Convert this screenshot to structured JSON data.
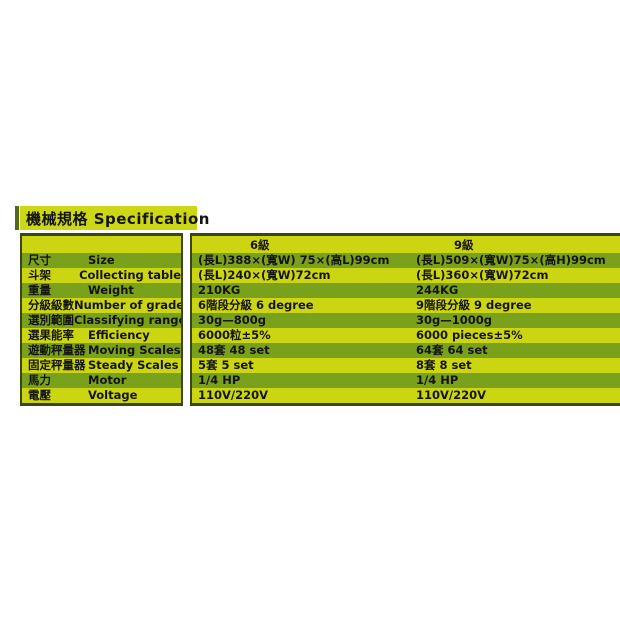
{
  "title": {
    "text": "機械規格  Specification"
  },
  "table": {
    "col_headers": [
      "6級",
      "9級"
    ],
    "rows": [
      {
        "cn": "尺寸",
        "en": "Size",
        "c6": "(長L)388×(寬W) 75×(高L)99cm",
        "c9": "(長L)509×(寬W)75×(高H)99cm"
      },
      {
        "cn": "斗架",
        "en": "Collecting table",
        "c6": "(長L)240×(寬W)72cm",
        "c9": "(長L)360×(寬W)72cm"
      },
      {
        "cn": "重量",
        "en": "Weight",
        "c6": "210KG",
        "c9": "244KG"
      },
      {
        "cn": "分級級數",
        "en": "Number of grades",
        "c6": "6階段分級 6 degree",
        "c9": "9階段分級 9 degree"
      },
      {
        "cn": "選別範圍",
        "en": "Classifying range",
        "c6": "30g—800g",
        "c9": "30g—1000g"
      },
      {
        "cn": "選果能率",
        "en": "Efficiency",
        "c6": "6000粒±5%",
        "c9": "6000 pieces±5%"
      },
      {
        "cn": "遊動秤量器",
        "en": "Moving Scales",
        "c6": "48套 48 set",
        "c9": "64套 64 set"
      },
      {
        "cn": "固定秤量器",
        "en": "Steady Scales",
        "c6": "5套 5 set",
        "c9": "8套 8 set"
      },
      {
        "cn": "馬力",
        "en": "Motor",
        "c6": "1/4 HP",
        "c9": "1/4 HP"
      },
      {
        "cn": "電壓",
        "en": "Voltage",
        "c6": "110V/220V",
        "c9": "110V/220V"
      }
    ]
  },
  "colors": {
    "row_green": "#7aa11c",
    "row_yellow": "#cbd511",
    "border_dark": "#3a451c",
    "accent_bar": "#51691d",
    "title_bg": "#ccd816",
    "text": "#141414"
  }
}
